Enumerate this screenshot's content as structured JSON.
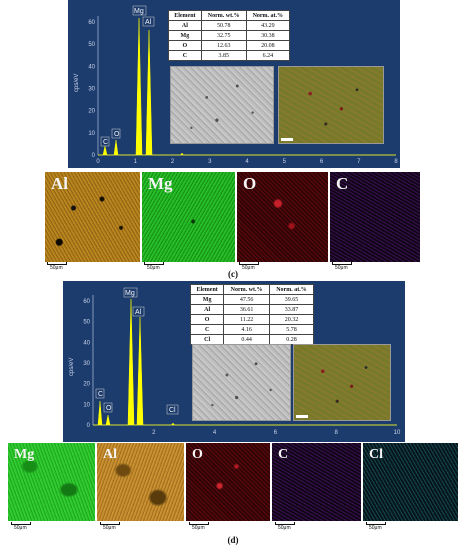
{
  "panels": [
    {
      "caption": "(c)",
      "spectrum": {
        "y_axis_label": "cps/eV",
        "y_ticks": [
          "0",
          "10",
          "20",
          "30",
          "40",
          "50",
          "60"
        ],
        "x_ticks": [
          "0",
          "1",
          "2",
          "3",
          "4",
          "5",
          "6",
          "7",
          "8"
        ],
        "peak_labels": [
          "C",
          "O",
          "Mg",
          "Al"
        ],
        "trace_color": "#ffff00"
      },
      "table": {
        "headers": [
          "Element",
          "Norm. wt.%",
          "Norm. at.%"
        ],
        "rows": [
          [
            "Al",
            "50.78",
            "43.29"
          ],
          [
            "Mg",
            "32.75",
            "30.38"
          ],
          [
            "O",
            "12.63",
            "20.08"
          ],
          [
            "C",
            "3.85",
            "6.24"
          ]
        ]
      },
      "maps": [
        {
          "label": "Al",
          "scale": "50μm"
        },
        {
          "label": "Mg",
          "scale": "50μm"
        },
        {
          "label": "O",
          "scale": "50μm"
        },
        {
          "label": "C",
          "scale": "50μm"
        }
      ]
    },
    {
      "caption": "(d)",
      "spectrum": {
        "y_axis_label": "cps/eV",
        "y_ticks": [
          "0",
          "10",
          "20",
          "30",
          "40",
          "50",
          "60"
        ],
        "x_ticks": [
          "2",
          "4",
          "6",
          "8",
          "10"
        ],
        "peak_labels": [
          "C",
          "O",
          "Mg",
          "Al",
          "Cl"
        ],
        "trace_color": "#ffff00"
      },
      "table": {
        "headers": [
          "Element",
          "Norm. wt.%",
          "Norm. at.%"
        ],
        "rows": [
          [
            "Mg",
            "47.56",
            "39.65"
          ],
          [
            "Al",
            "36.61",
            "33.87"
          ],
          [
            "O",
            "11.22",
            "20.32"
          ],
          [
            "C",
            "4.16",
            "5.78"
          ],
          [
            "Cl",
            "0.44",
            "0.28"
          ]
        ]
      },
      "maps": [
        {
          "label": "Mg",
          "scale": "50μm"
        },
        {
          "label": "Al",
          "scale": "50μm"
        },
        {
          "label": "O",
          "scale": "50μm"
        },
        {
          "label": "C",
          "scale": "50μm"
        },
        {
          "label": "Cl",
          "scale": "50μm"
        }
      ]
    }
  ]
}
